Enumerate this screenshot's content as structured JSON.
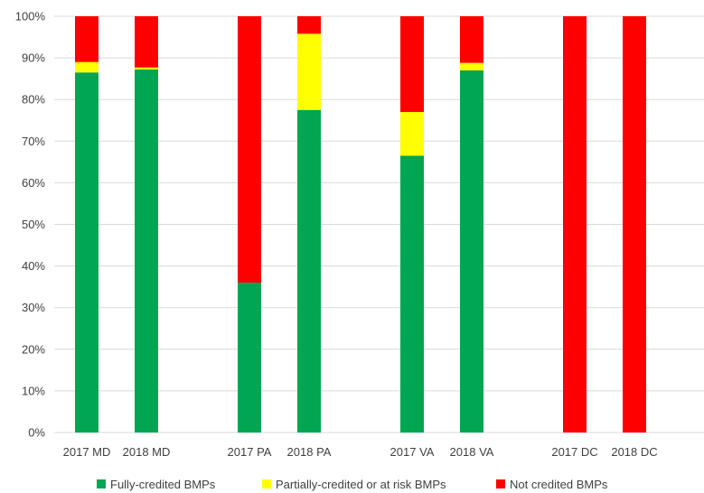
{
  "chart_data": {
    "type": "bar",
    "stacked": true,
    "percent_stacked": true,
    "title": "",
    "xlabel": "",
    "ylabel": "",
    "ylim": [
      0,
      100
    ],
    "y_ticks": [
      "0%",
      "10%",
      "20%",
      "30%",
      "40%",
      "50%",
      "60%",
      "70%",
      "80%",
      "90%",
      "100%"
    ],
    "grid": true,
    "legend_position": "bottom",
    "categories": [
      "2017 MD",
      "2018 MD",
      "2017 PA",
      "2018 PA",
      "2017 VA",
      "2018 VA",
      "2017 DC",
      "2018 DC"
    ],
    "series": [
      {
        "name": "Fully-credited BMPs",
        "color": "#00a651",
        "values": [
          86.5,
          87.2,
          36.0,
          77.5,
          66.5,
          87.0,
          0,
          0
        ]
      },
      {
        "name": "Partially-credited or at risk BMPs",
        "color": "#ffff00",
        "values": [
          2.5,
          0.5,
          0,
          18.3,
          10.5,
          1.8,
          0,
          0
        ]
      },
      {
        "name": "Not credited BMPs",
        "color": "#ff0000",
        "values": [
          11.0,
          12.3,
          64.0,
          4.2,
          23.0,
          11.2,
          100,
          100
        ]
      }
    ]
  }
}
